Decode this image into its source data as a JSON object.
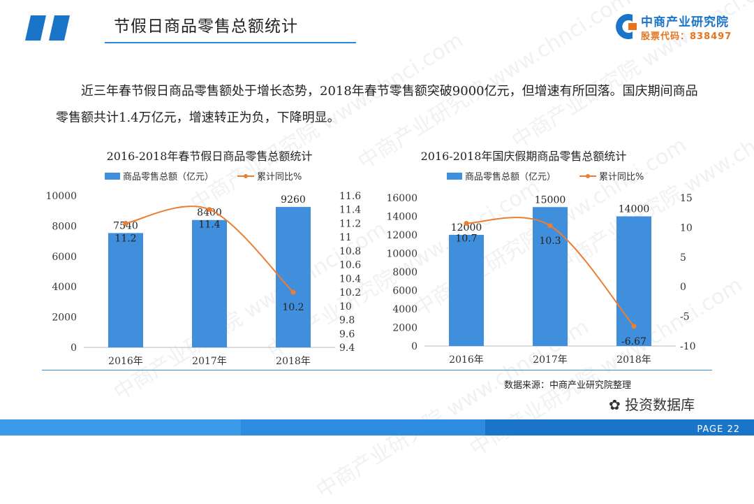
{
  "header": {
    "title": "节假日商品零售总额统计",
    "logo_name": "中商产业研究院",
    "logo_code": "股票代码：838497"
  },
  "description": "近三年春节假日商品零售额处于增长态势，2018年春节零售额突破9000亿元，但增速有所回落。国庆期间商品零售额共计1.4万亿元，增速转正为负，下降明显。",
  "watermark": "中商产业研究院 www.chnci.com",
  "colors": {
    "bar": "#3f8fdc",
    "line": "#ed7d31",
    "accent": "#2e86d8"
  },
  "chart_data": [
    {
      "type": "bar",
      "title": "2016-2018年春节假日商品零售总额统计",
      "categories": [
        "2016年",
        "2017年",
        "2018年"
      ],
      "series": [
        {
          "name": "商品零售总额（亿元）",
          "type": "bar",
          "axis": "left",
          "values": [
            7540,
            8400,
            9260
          ],
          "labels": [
            "7540",
            "8400",
            "9260"
          ]
        },
        {
          "name": "累计同比%",
          "type": "line",
          "axis": "right",
          "values": [
            11.2,
            11.4,
            10.2
          ],
          "labels": [
            "11.2",
            "11.4",
            "10.2"
          ]
        }
      ],
      "ylim": [
        0,
        10000
      ],
      "yticks": [
        "0",
        "2000",
        "4000",
        "6000",
        "8000",
        "10000"
      ],
      "y2lim": [
        9.4,
        11.6
      ],
      "y2ticks": [
        "9.4",
        "9.6",
        "9.8",
        "10",
        "10.2",
        "10.4",
        "10.6",
        "10.8",
        "11",
        "11.2",
        "11.4",
        "11.6"
      ],
      "legend": "top"
    },
    {
      "type": "bar",
      "title": "2016-2018年国庆假期商品零售总额统计",
      "categories": [
        "2016年",
        "2017年",
        "2018年"
      ],
      "series": [
        {
          "name": "商品零售总额（亿元）",
          "type": "bar",
          "axis": "left",
          "values": [
            12000,
            15000,
            14000
          ],
          "labels": [
            "12000",
            "15000",
            "14000"
          ]
        },
        {
          "name": "累计同比%",
          "type": "line",
          "axis": "right",
          "values": [
            10.7,
            10.3,
            -6.67
          ],
          "labels": [
            "10.7",
            "10.3",
            "-6.67"
          ]
        }
      ],
      "ylim": [
        0,
        16000
      ],
      "yticks": [
        "0",
        "2000",
        "4000",
        "6000",
        "8000",
        "10000",
        "12000",
        "14000",
        "16000"
      ],
      "y2lim": [
        -10,
        15
      ],
      "y2ticks": [
        "-10",
        "-5",
        "0",
        "5",
        "10",
        "15"
      ],
      "legend": "top"
    }
  ],
  "source": "数据来源：中商产业研究院整理",
  "wechat": "投资数据库",
  "page": "PAGE 22"
}
